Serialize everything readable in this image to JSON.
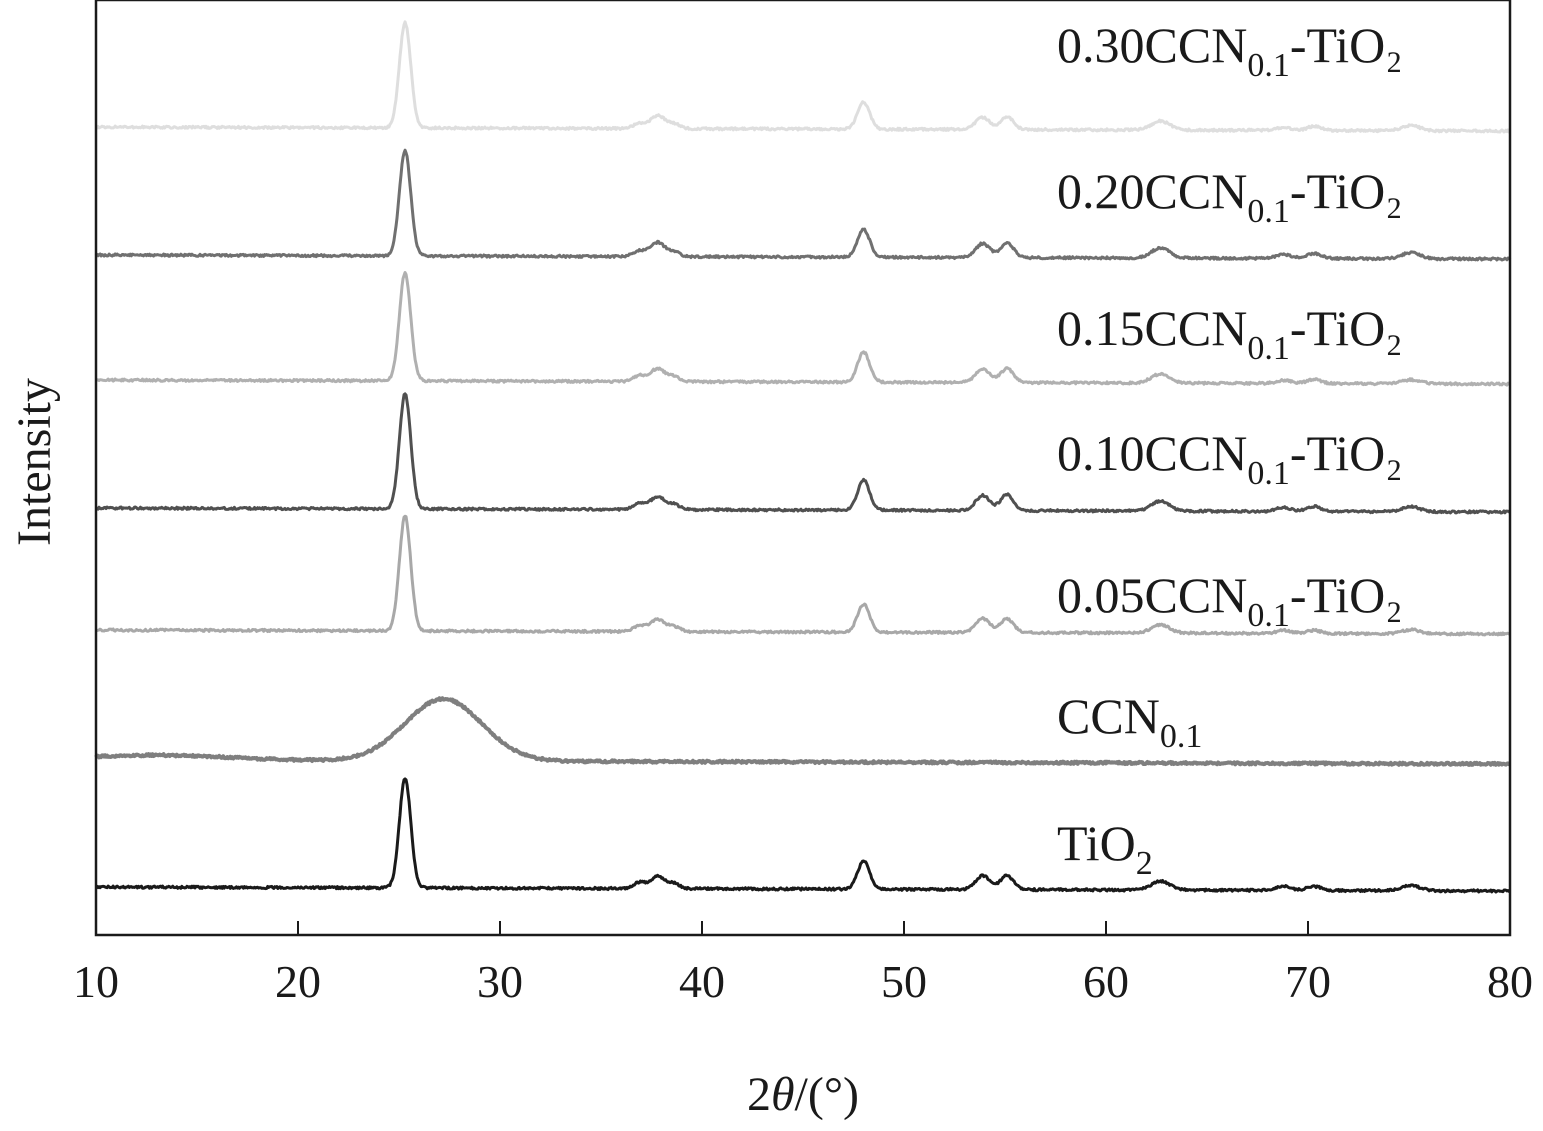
{
  "chart_data": {
    "type": "line",
    "xlabel_parts": {
      "prefix": "2",
      "var": "θ",
      "suffix": "/(°)"
    },
    "ylabel": "Intensity",
    "xlim": [
      10,
      80
    ],
    "xticks": [
      10,
      20,
      30,
      40,
      50,
      60,
      70,
      80
    ],
    "y_ticks_shown": false,
    "grid": false,
    "legend": "inline labels at right of each trace",
    "series": [
      {
        "label": {
          "main": "TiO",
          "sub": "2",
          "tail": ""
        },
        "color": "#1a1a1a",
        "baseline": 0,
        "peaks": [
          {
            "x": 25.3,
            "h": 110,
            "w": 0.28
          },
          {
            "x": 36.9,
            "h": 6,
            "w": 0.3
          },
          {
            "x": 37.8,
            "h": 12,
            "w": 0.35
          },
          {
            "x": 38.6,
            "h": 5,
            "w": 0.3
          },
          {
            "x": 48.0,
            "h": 28,
            "w": 0.3
          },
          {
            "x": 53.9,
            "h": 14,
            "w": 0.35
          },
          {
            "x": 55.1,
            "h": 14,
            "w": 0.32
          },
          {
            "x": 62.7,
            "h": 9,
            "w": 0.45
          },
          {
            "x": 68.8,
            "h": 4,
            "w": 0.35
          },
          {
            "x": 70.3,
            "h": 4,
            "w": 0.35
          },
          {
            "x": 75.1,
            "h": 5,
            "w": 0.45
          }
        ]
      },
      {
        "label": {
          "main": "CCN",
          "sub": "0.1",
          "tail": ""
        },
        "color": "#7f7f7f",
        "baseline": 0,
        "peaks": [
          {
            "x": 13.1,
            "h": 5,
            "w": 3.5
          },
          {
            "x": 27.2,
            "h": 62,
            "w": 1.9
          }
        ]
      },
      {
        "label": {
          "main": "0.05CCN",
          "sub": "0.1",
          "tail": "-TiO₂"
        },
        "color": "#a8a8a8",
        "baseline": 0,
        "peaks": [
          {
            "x": 25.3,
            "h": 115,
            "w": 0.28
          },
          {
            "x": 36.9,
            "h": 6,
            "w": 0.3
          },
          {
            "x": 37.8,
            "h": 12,
            "w": 0.35
          },
          {
            "x": 38.6,
            "h": 5,
            "w": 0.3
          },
          {
            "x": 48.0,
            "h": 28,
            "w": 0.3
          },
          {
            "x": 53.9,
            "h": 14,
            "w": 0.35
          },
          {
            "x": 55.1,
            "h": 14,
            "w": 0.32
          },
          {
            "x": 62.7,
            "h": 8,
            "w": 0.45
          },
          {
            "x": 68.8,
            "h": 3,
            "w": 0.35
          },
          {
            "x": 70.3,
            "h": 3,
            "w": 0.35
          },
          {
            "x": 75.1,
            "h": 4,
            "w": 0.45
          }
        ]
      },
      {
        "label": {
          "main": "0.10CCN",
          "sub": "0.1",
          "tail": "-TiO₂"
        },
        "color": "#505050",
        "baseline": 0,
        "peaks": [
          {
            "x": 25.3,
            "h": 115,
            "w": 0.28
          },
          {
            "x": 36.9,
            "h": 6,
            "w": 0.3
          },
          {
            "x": 37.8,
            "h": 13,
            "w": 0.35
          },
          {
            "x": 38.6,
            "h": 5,
            "w": 0.3
          },
          {
            "x": 48.0,
            "h": 30,
            "w": 0.3
          },
          {
            "x": 53.9,
            "h": 15,
            "w": 0.35
          },
          {
            "x": 55.1,
            "h": 16,
            "w": 0.32
          },
          {
            "x": 62.7,
            "h": 10,
            "w": 0.45
          },
          {
            "x": 68.8,
            "h": 4,
            "w": 0.35
          },
          {
            "x": 70.3,
            "h": 5,
            "w": 0.35
          },
          {
            "x": 75.1,
            "h": 5,
            "w": 0.45
          }
        ]
      },
      {
        "label": {
          "main": "0.15CCN",
          "sub": "0.1",
          "tail": "-TiO₂"
        },
        "color": "#b0b0b0",
        "baseline": 0,
        "peaks": [
          {
            "x": 25.3,
            "h": 108,
            "w": 0.28
          },
          {
            "x": 36.9,
            "h": 6,
            "w": 0.3
          },
          {
            "x": 37.8,
            "h": 13,
            "w": 0.35
          },
          {
            "x": 38.6,
            "h": 5,
            "w": 0.3
          },
          {
            "x": 48.0,
            "h": 30,
            "w": 0.3
          },
          {
            "x": 53.9,
            "h": 14,
            "w": 0.35
          },
          {
            "x": 55.1,
            "h": 14,
            "w": 0.32
          },
          {
            "x": 62.7,
            "h": 9,
            "w": 0.45
          },
          {
            "x": 68.8,
            "h": 3,
            "w": 0.35
          },
          {
            "x": 70.3,
            "h": 4,
            "w": 0.35
          },
          {
            "x": 75.1,
            "h": 4,
            "w": 0.45
          }
        ]
      },
      {
        "label": {
          "main": "0.20CCN",
          "sub": "0.1",
          "tail": "-TiO₂"
        },
        "color": "#707070",
        "baseline": 0,
        "peaks": [
          {
            "x": 25.3,
            "h": 105,
            "w": 0.28
          },
          {
            "x": 36.9,
            "h": 6,
            "w": 0.3
          },
          {
            "x": 37.8,
            "h": 14,
            "w": 0.35
          },
          {
            "x": 38.6,
            "h": 5,
            "w": 0.3
          },
          {
            "x": 48.0,
            "h": 28,
            "w": 0.3
          },
          {
            "x": 53.9,
            "h": 14,
            "w": 0.35
          },
          {
            "x": 55.1,
            "h": 15,
            "w": 0.32
          },
          {
            "x": 62.7,
            "h": 10,
            "w": 0.45
          },
          {
            "x": 68.8,
            "h": 4,
            "w": 0.35
          },
          {
            "x": 70.3,
            "h": 5,
            "w": 0.35
          },
          {
            "x": 75.1,
            "h": 6,
            "w": 0.45
          }
        ]
      },
      {
        "label": {
          "main": "0.30CCN",
          "sub": "0.1",
          "tail": "-TiO₂"
        },
        "color": "#dedede",
        "baseline": 0,
        "peaks": [
          {
            "x": 25.3,
            "h": 105,
            "w": 0.28
          },
          {
            "x": 36.9,
            "h": 5,
            "w": 0.3
          },
          {
            "x": 37.8,
            "h": 13,
            "w": 0.35
          },
          {
            "x": 38.6,
            "h": 5,
            "w": 0.3
          },
          {
            "x": 48.0,
            "h": 27,
            "w": 0.3
          },
          {
            "x": 53.9,
            "h": 12,
            "w": 0.35
          },
          {
            "x": 55.1,
            "h": 13,
            "w": 0.32
          },
          {
            "x": 62.7,
            "h": 9,
            "w": 0.45
          },
          {
            "x": 68.8,
            "h": 3,
            "w": 0.35
          },
          {
            "x": 70.3,
            "h": 4,
            "w": 0.35
          },
          {
            "x": 75.1,
            "h": 5,
            "w": 0.45
          }
        ]
      }
    ]
  }
}
